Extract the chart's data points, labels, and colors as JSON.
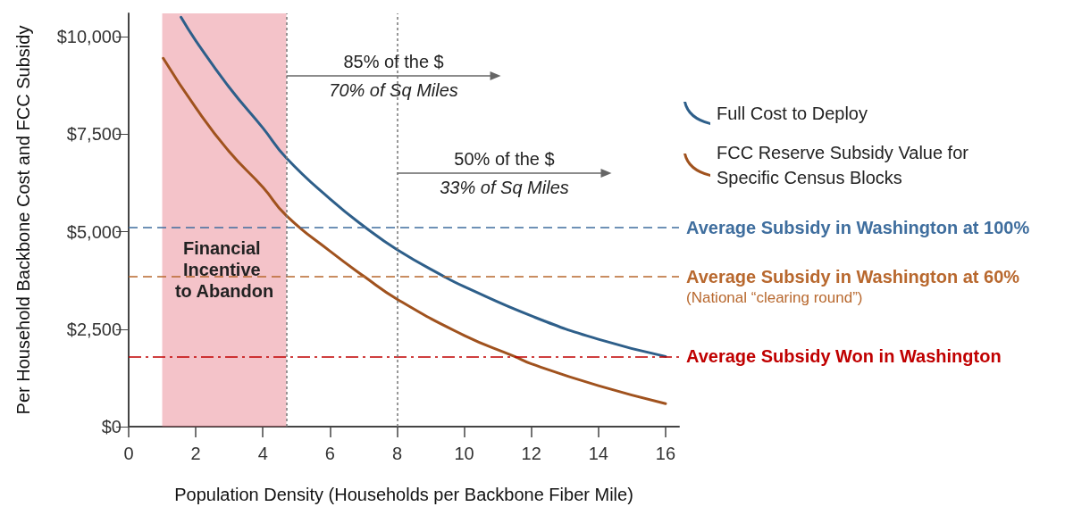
{
  "chart_data": {
    "type": "line",
    "xlabel": "Population Density (Households per Backbone Fiber Mile)",
    "ylabel": "Per Household Backbone Cost and FCC Subsidy",
    "series": [
      {
        "name": "Full Cost to Deploy",
        "color": "#2e5f8a",
        "x": [
          1.56,
          2,
          3,
          4,
          4.7,
          6,
          7.07,
          8,
          9.4,
          10,
          12,
          14,
          16
        ],
        "values": [
          10500,
          9900,
          8700,
          7660,
          6890,
          5840,
          5100,
          4540,
          3850,
          3590,
          2840,
          2240,
          1800
        ]
      },
      {
        "name": "FCC Reserve Subsidy Value for Specific Census Blocks",
        "color": "#a0521e",
        "x": [
          1.03,
          2,
          3,
          4,
          4.7,
          6,
          7.02,
          8,
          10,
          11.5,
          12,
          14,
          16
        ],
        "values": [
          9450,
          8180,
          7050,
          6140,
          5410,
          4500,
          3850,
          3270,
          2340,
          1800,
          1610,
          1050,
          590
        ]
      }
    ],
    "xlim": [
      0,
      16.4
    ],
    "xticks": [
      0,
      2,
      4,
      6,
      8,
      10,
      12,
      14,
      16
    ],
    "ylim": [
      0,
      10600
    ],
    "yticks": [
      {
        "value": 0,
        "label": "$0"
      },
      {
        "value": 2500,
        "label": "$2,500"
      },
      {
        "value": 5000,
        "label": "$5,000"
      },
      {
        "value": 7500,
        "label": "$7,500"
      },
      {
        "value": 10000,
        "label": "$10,000"
      }
    ],
    "ref_lines": [
      {
        "axis": "y",
        "value": 5100,
        "label": "Average Subsidy in Washington at 100%",
        "color": "#3f6e9e",
        "line_style": "dashed"
      },
      {
        "axis": "y",
        "value": 3850,
        "label": "Average Subsidy in Washington at 60%\n(National “clearing round”)",
        "color": "#b8682e",
        "line_style": "dashed"
      },
      {
        "axis": "y",
        "value": 1800,
        "label": "Average Subsidy Won in Washington",
        "color": "#c00000",
        "line_style": "dashdot"
      },
      {
        "axis": "x",
        "value": 4.7,
        "label": null,
        "color": "#777777",
        "line_style": "dotted"
      },
      {
        "axis": "x",
        "value": 8,
        "label": null,
        "color": "#777777",
        "line_style": "dotted"
      }
    ],
    "bands": [
      {
        "axis": "x",
        "from": 1.0,
        "to": 4.7,
        "label": "Financial Incentive to Abandon",
        "color": "#e46a78"
      }
    ],
    "annotations": [
      {
        "text": "85% of the $\n70% of Sq Miles",
        "x": 4.7,
        "y": 9000
      },
      {
        "text": "50% of the $\n33% of Sq Miles",
        "x": 8,
        "y": 6500
      }
    ],
    "grid": false,
    "legend": "top right",
    "marker": "none",
    "line_style": "solid"
  }
}
